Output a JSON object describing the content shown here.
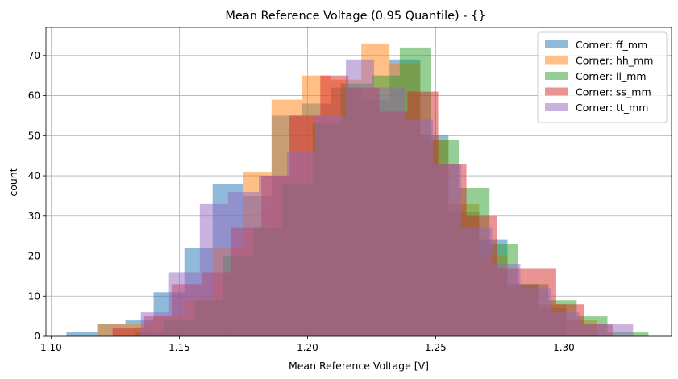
{
  "chart_data": {
    "type": "histogram",
    "title": "Mean Reference Voltage (0.95 Quantile) - {}",
    "xlabel": "Mean Reference Voltage [V]",
    "ylabel": "count",
    "xlim": [
      1.098,
      1.342
    ],
    "ylim": [
      0,
      77
    ],
    "xticks": [
      1.1,
      1.15,
      1.2,
      1.25,
      1.3
    ],
    "xtick_labels": [
      "1.10",
      "1.15",
      "1.20",
      "1.25",
      "1.30"
    ],
    "yticks": [
      0,
      10,
      20,
      30,
      40,
      50,
      60,
      70
    ],
    "grid": true,
    "legend_position": "top-right",
    "series": [
      {
        "name": "Corner: ff_mm",
        "color": "#1f77b4",
        "bin_edges": [
          1.106,
          1.118,
          1.129,
          1.14,
          1.152,
          1.163,
          1.175,
          1.186,
          1.198,
          1.209,
          1.221,
          1.232,
          1.244,
          1.255,
          1.267,
          1.278,
          1.29,
          1.301
        ],
        "counts": [
          1,
          3,
          4,
          11,
          22,
          38,
          35,
          55,
          58,
          62,
          59,
          69,
          50,
          31,
          24,
          13,
          7
        ]
      },
      {
        "name": "Corner: hh_mm",
        "color": "#ff7f0e",
        "bin_edges": [
          1.118,
          1.129,
          1.14,
          1.152,
          1.163,
          1.175,
          1.186,
          1.198,
          1.209,
          1.221,
          1.232,
          1.244,
          1.255,
          1.267,
          1.278,
          1.29,
          1.301,
          1.313
        ],
        "counts": [
          3,
          3,
          5,
          9,
          22,
          41,
          59,
          65,
          64,
          73,
          68,
          49,
          33,
          20,
          12,
          8,
          4
        ]
      },
      {
        "name": "Corner: ll_mm",
        "color": "#2ca02c",
        "bin_edges": [
          1.133,
          1.144,
          1.156,
          1.167,
          1.179,
          1.19,
          1.202,
          1.213,
          1.225,
          1.236,
          1.248,
          1.259,
          1.271,
          1.282,
          1.294,
          1.305,
          1.317,
          1.333
        ],
        "counts": [
          1,
          4,
          9,
          20,
          27,
          38,
          53,
          63,
          65,
          72,
          49,
          37,
          23,
          13,
          9,
          5,
          1
        ]
      },
      {
        "name": "Corner: ss_mm",
        "color": "#d62728",
        "bin_edges": [
          1.124,
          1.136,
          1.147,
          1.159,
          1.17,
          1.182,
          1.193,
          1.205,
          1.216,
          1.228,
          1.239,
          1.251,
          1.262,
          1.274,
          1.285,
          1.297,
          1.308,
          1.319
        ],
        "counts": [
          2,
          5,
          13,
          16,
          27,
          40,
          55,
          65,
          62,
          56,
          61,
          43,
          30,
          17,
          17,
          8,
          3
        ]
      },
      {
        "name": "Corner: tt_mm",
        "color": "#9467bd",
        "bin_edges": [
          1.135,
          1.146,
          1.158,
          1.169,
          1.181,
          1.192,
          1.203,
          1.215,
          1.226,
          1.238,
          1.249,
          1.26,
          1.272,
          1.283,
          1.295,
          1.306,
          1.317,
          1.327
        ],
        "counts": [
          6,
          16,
          33,
          36,
          40,
          46,
          55,
          69,
          62,
          54,
          43,
          27,
          18,
          12,
          6,
          3,
          3
        ]
      }
    ]
  }
}
